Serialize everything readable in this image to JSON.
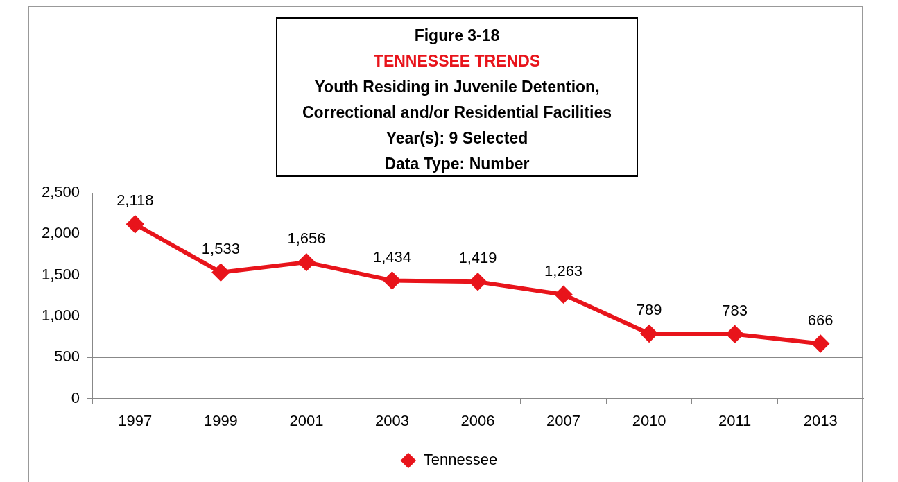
{
  "chart_data": {
    "type": "line",
    "title": "Figure 3-18",
    "subtitle": "TENNESSEE TRENDS",
    "annotations": [
      "Youth Residing in Juvenile Detention,",
      "Correctional and/or Residential Facilities",
      "Year(s): 9 Selected",
      "Data Type: Number"
    ],
    "categories": [
      "1997",
      "1999",
      "2001",
      "2003",
      "2006",
      "2007",
      "2010",
      "2011",
      "2013"
    ],
    "series": [
      {
        "name": "Tennessee",
        "color": "#e8141b",
        "values": [
          2118,
          1533,
          1656,
          1434,
          1419,
          1263,
          789,
          783,
          666
        ],
        "value_labels": [
          "2,118",
          "1,533",
          "1,656",
          "1,434",
          "1,419",
          "1,263",
          "789",
          "783",
          "666"
        ]
      }
    ],
    "ylim": [
      0,
      2500
    ],
    "yticks": [
      0,
      500,
      {
        "value": 1000,
        "label": "1,000"
      },
      {
        "value": 1500,
        "label": "1,500"
      },
      {
        "value": 2000,
        "label": "2,000"
      },
      {
        "value": 2500,
        "label": "2,500"
      }
    ],
    "grid": "y",
    "legend": "bottom",
    "marker": "diamond",
    "line_style": "solid"
  }
}
